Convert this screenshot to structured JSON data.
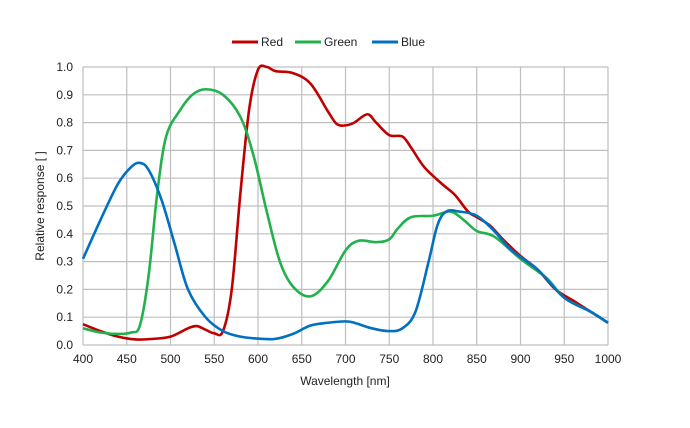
{
  "chart_data": {
    "type": "line",
    "title": "",
    "xlabel": "Wavelength [nm]",
    "ylabel": "Relative response [ ]",
    "xlim": [
      400,
      1000
    ],
    "ylim": [
      0,
      1.0
    ],
    "xticks": [
      400,
      450,
      500,
      550,
      600,
      650,
      700,
      750,
      800,
      850,
      900,
      950,
      1000
    ],
    "yticks": [
      "0.0",
      "0.1",
      "0.2",
      "0.3",
      "0.4",
      "0.5",
      "0.6",
      "0.7",
      "0.8",
      "0.9",
      "1.0"
    ],
    "grid": true,
    "legend_position": "top-center",
    "series": [
      {
        "name": "Red",
        "color": "#c00000",
        "x": [
          400,
          420,
          440,
          460,
          480,
          500,
          520,
          530,
          540,
          550,
          560,
          570,
          580,
          590,
          600,
          610,
          620,
          640,
          660,
          680,
          690,
          700,
          710,
          725,
          735,
          750,
          765,
          775,
          790,
          810,
          825,
          840,
          850,
          865,
          880,
          900,
          920,
          940,
          960,
          980,
          1000
        ],
        "y": [
          0.075,
          0.05,
          0.03,
          0.02,
          0.022,
          0.03,
          0.06,
          0.068,
          0.055,
          0.042,
          0.05,
          0.2,
          0.55,
          0.85,
          0.99,
          1.0,
          0.985,
          0.978,
          0.94,
          0.84,
          0.795,
          0.79,
          0.8,
          0.83,
          0.8,
          0.755,
          0.75,
          0.71,
          0.64,
          0.58,
          0.54,
          0.48,
          0.46,
          0.43,
          0.38,
          0.32,
          0.27,
          0.2,
          0.16,
          0.12,
          0.08
        ]
      },
      {
        "name": "Green",
        "color": "#22b14c",
        "x": [
          400,
          420,
          440,
          455,
          465,
          475,
          485,
          495,
          510,
          525,
          540,
          560,
          580,
          595,
          610,
          625,
          640,
          660,
          680,
          700,
          715,
          735,
          750,
          760,
          775,
          800,
          820,
          835,
          850,
          870,
          900,
          930,
          950,
          980,
          1000
        ],
        "y": [
          0.06,
          0.045,
          0.04,
          0.045,
          0.07,
          0.25,
          0.55,
          0.75,
          0.84,
          0.9,
          0.92,
          0.9,
          0.82,
          0.68,
          0.48,
          0.3,
          0.21,
          0.175,
          0.23,
          0.34,
          0.375,
          0.37,
          0.38,
          0.42,
          0.46,
          0.465,
          0.48,
          0.45,
          0.41,
          0.39,
          0.31,
          0.24,
          0.17,
          0.12,
          0.08
        ]
      },
      {
        "name": "Blue",
        "color": "#0070c0",
        "x": [
          400,
          420,
          440,
          455,
          465,
          475,
          490,
          505,
          520,
          540,
          560,
          580,
          600,
          620,
          640,
          660,
          680,
          700,
          710,
          730,
          750,
          765,
          780,
          795,
          805,
          815,
          830,
          850,
          870,
          890,
          920,
          950,
          980,
          1000
        ],
        "y": [
          0.31,
          0.45,
          0.58,
          0.64,
          0.655,
          0.63,
          0.52,
          0.36,
          0.2,
          0.1,
          0.05,
          0.03,
          0.023,
          0.022,
          0.04,
          0.07,
          0.08,
          0.085,
          0.08,
          0.06,
          0.05,
          0.06,
          0.12,
          0.3,
          0.43,
          0.48,
          0.48,
          0.465,
          0.41,
          0.34,
          0.27,
          0.17,
          0.12,
          0.08
        ]
      }
    ]
  }
}
